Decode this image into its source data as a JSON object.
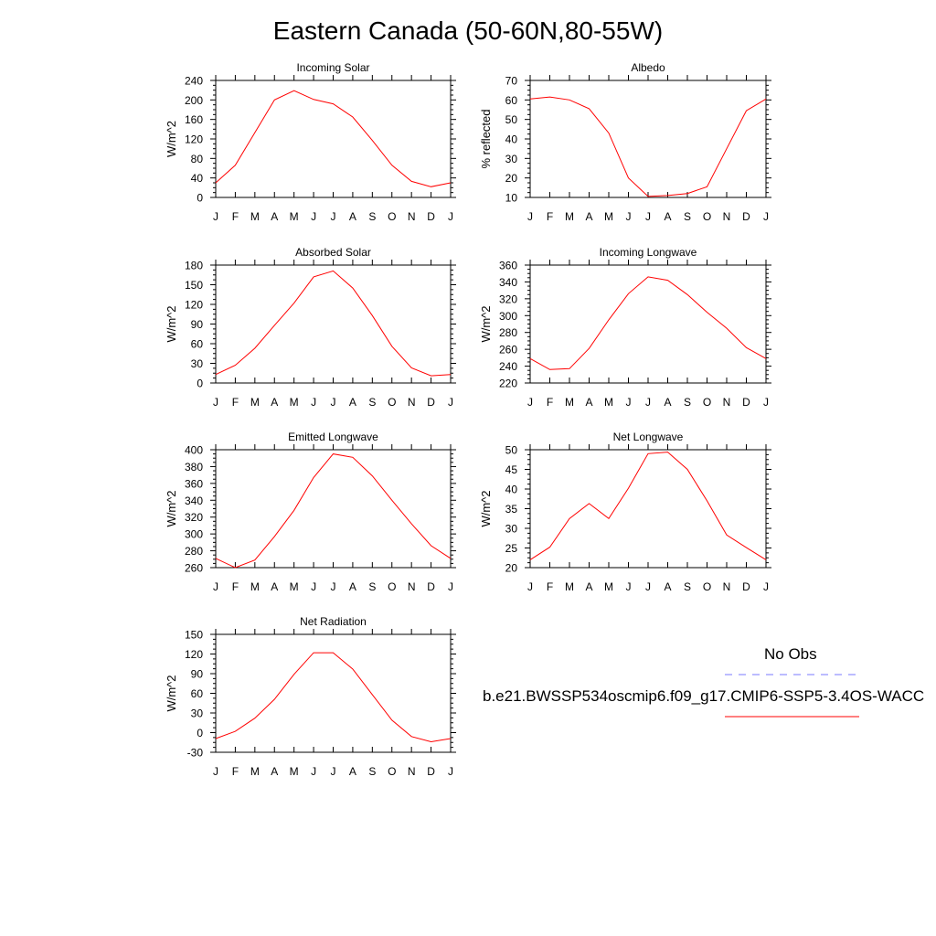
{
  "title": "Eastern Canada (50-60N,80-55W)",
  "legend": {
    "obs_label": "No Obs",
    "model_label": "b.e21.BWSSP534oscmip6.f09_g17.CMIP6-SSP5-3.4OS-WACC",
    "obs_color": "#7a7aff",
    "model_color": "#ff0000"
  },
  "chart_data": [
    {
      "type": "line",
      "title": "Incoming Solar",
      "ylabel": "W/m^2",
      "ylim": [
        0,
        240
      ],
      "yticks": [
        0,
        40,
        80,
        120,
        160,
        200,
        240
      ],
      "categories": [
        "J",
        "F",
        "M",
        "A",
        "M",
        "J",
        "J",
        "A",
        "S",
        "O",
        "N",
        "D",
        "J"
      ],
      "series": [
        {
          "values": [
            30,
            66,
            133,
            200,
            219,
            201,
            192,
            165,
            117,
            66,
            33,
            22,
            30
          ]
        }
      ]
    },
    {
      "type": "line",
      "title": "Albedo",
      "ylabel": "% reflected",
      "ylim": [
        10,
        70
      ],
      "yticks": [
        10,
        20,
        30,
        40,
        50,
        60,
        70
      ],
      "categories": [
        "J",
        "F",
        "M",
        "A",
        "M",
        "J",
        "J",
        "A",
        "S",
        "O",
        "N",
        "D",
        "J"
      ],
      "series": [
        {
          "values": [
            60.5,
            61.5,
            60,
            55.5,
            43,
            20,
            10.5,
            11,
            12,
            15.5,
            35,
            54.5,
            60.5
          ]
        }
      ]
    },
    {
      "type": "line",
      "title": "Absorbed Solar",
      "ylabel": "W/m^2",
      "ylim": [
        0,
        180
      ],
      "yticks": [
        0,
        30,
        60,
        90,
        120,
        150,
        180
      ],
      "categories": [
        "J",
        "F",
        "M",
        "A",
        "M",
        "J",
        "J",
        "A",
        "S",
        "O",
        "N",
        "D",
        "J"
      ],
      "series": [
        {
          "values": [
            13,
            27,
            53,
            88,
            122,
            162,
            171,
            145,
            103,
            56,
            23,
            11,
            13
          ]
        }
      ]
    },
    {
      "type": "line",
      "title": "Incoming Longwave",
      "ylabel": "W/m^2",
      "ylim": [
        220,
        360
      ],
      "yticks": [
        220,
        240,
        260,
        280,
        300,
        320,
        340,
        360
      ],
      "categories": [
        "J",
        "F",
        "M",
        "A",
        "M",
        "J",
        "J",
        "A",
        "S",
        "O",
        "N",
        "D",
        "J"
      ],
      "series": [
        {
          "values": [
            249,
            236,
            237,
            261,
            295,
            326,
            346,
            342,
            325,
            304,
            285,
            262,
            249
          ]
        }
      ]
    },
    {
      "type": "line",
      "title": "Emitted Longwave",
      "ylabel": "W/m^2",
      "ylim": [
        260,
        400
      ],
      "yticks": [
        260,
        280,
        300,
        320,
        340,
        360,
        380,
        400
      ],
      "categories": [
        "J",
        "F",
        "M",
        "A",
        "M",
        "J",
        "J",
        "A",
        "S",
        "O",
        "N",
        "D",
        "J"
      ],
      "series": [
        {
          "values": [
            271,
            260,
            269,
            297,
            328,
            367,
            395,
            391,
            369,
            340,
            312,
            286,
            271
          ]
        }
      ]
    },
    {
      "type": "line",
      "title": "Net Longwave",
      "ylabel": "W/m^2",
      "ylim": [
        20,
        50
      ],
      "yticks": [
        20,
        25,
        30,
        35,
        40,
        45,
        50
      ],
      "categories": [
        "J",
        "F",
        "M",
        "A",
        "M",
        "J",
        "J",
        "A",
        "S",
        "O",
        "N",
        "D",
        "J"
      ],
      "series": [
        {
          "values": [
            22,
            25.2,
            32.5,
            36.3,
            32.5,
            40.2,
            49,
            49.4,
            45,
            37,
            28.3,
            25.1,
            22
          ]
        }
      ]
    },
    {
      "type": "line",
      "title": "Net Radiation",
      "ylabel": "W/m^2",
      "ylim": [
        -30,
        150
      ],
      "yticks": [
        -30,
        0,
        30,
        60,
        90,
        120,
        150
      ],
      "categories": [
        "J",
        "F",
        "M",
        "A",
        "M",
        "J",
        "J",
        "A",
        "S",
        "O",
        "N",
        "D",
        "J"
      ],
      "series": [
        {
          "values": [
            -9,
            2,
            22,
            51,
            89,
            122,
            122,
            97,
            58,
            19,
            -6,
            -14,
            -9
          ]
        }
      ]
    }
  ]
}
